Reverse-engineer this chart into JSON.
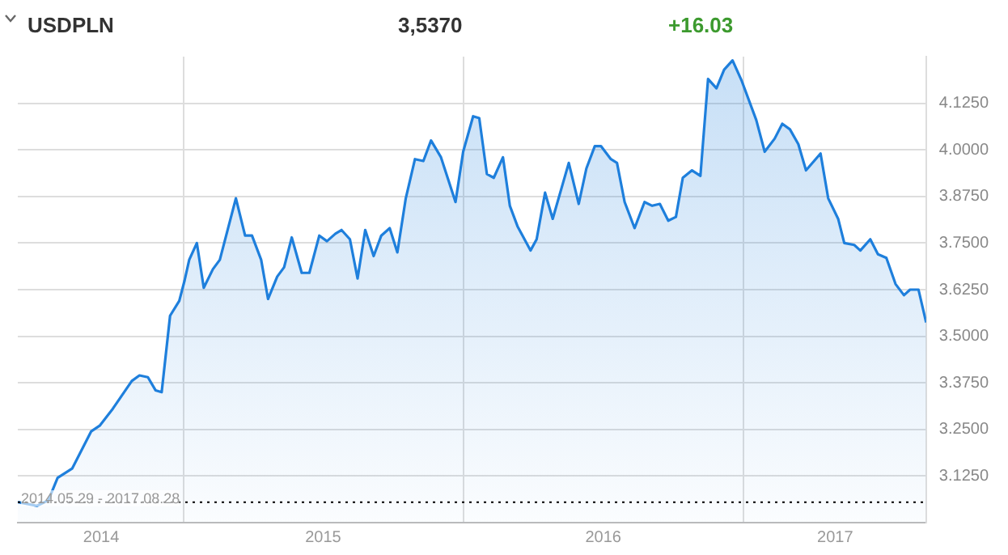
{
  "chart_data": {
    "type": "area",
    "title": "USDPLN",
    "annotations": [
      "3,5370",
      "+16.03",
      "2014.05.29 - 2017.08.28"
    ],
    "xlim": [
      "2014-05-29",
      "2017-08-28"
    ],
    "xticks": [
      {
        "value": "2014-09-15",
        "label": "2014"
      },
      {
        "value": "2015-01-01",
        "label": null
      },
      {
        "value": "2015-07-02",
        "label": "2015"
      },
      {
        "value": "2016-01-01",
        "label": null
      },
      {
        "value": "2016-07-02",
        "label": "2016"
      },
      {
        "value": "2017-01-01",
        "label": null
      },
      {
        "value": "2017-05-01",
        "label": "2017"
      }
    ],
    "ylim": [
      3.0,
      4.25
    ],
    "yticks": [
      {
        "value": 3.125,
        "label": "3.1250"
      },
      {
        "value": 3.25,
        "label": "3.2500"
      },
      {
        "value": 3.375,
        "label": "3.3750"
      },
      {
        "value": 3.5,
        "label": "3.5000"
      },
      {
        "value": 3.625,
        "label": "3.6250"
      },
      {
        "value": 3.75,
        "label": "3.7500"
      },
      {
        "value": 3.875,
        "label": "3.8750"
      },
      {
        "value": 4.0,
        "label": "4.0000"
      },
      {
        "value": 4.125,
        "label": "4.1250"
      }
    ],
    "grid": true,
    "legend": false,
    "marker": "none",
    "line_style": "solid",
    "ref_lines": [
      {
        "axis": "y",
        "value": 3.055,
        "color": "#000000",
        "line_style": "dotted"
      }
    ],
    "x": [
      "2014-05-29",
      "2014-06-23",
      "2014-07-08",
      "2014-07-20",
      "2014-08-08",
      "2014-09-02",
      "2014-09-13",
      "2014-09-30",
      "2014-10-25",
      "2014-11-04",
      "2014-11-15",
      "2014-11-25",
      "2014-12-03",
      "2014-12-14",
      "2014-12-26",
      "2015-01-02",
      "2015-01-08",
      "2015-01-18",
      "2015-01-27",
      "2015-02-08",
      "2015-02-17",
      "2015-03-10",
      "2015-03-22",
      "2015-03-31",
      "2015-04-12",
      "2015-04-21",
      "2015-05-03",
      "2015-05-12",
      "2015-05-22",
      "2015-06-04",
      "2015-06-14",
      "2015-06-27",
      "2015-07-07",
      "2015-07-18",
      "2015-07-26",
      "2015-08-06",
      "2015-08-16",
      "2015-08-26",
      "2015-09-06",
      "2015-09-16",
      "2015-09-27",
      "2015-10-07",
      "2015-10-18",
      "2015-10-30",
      "2015-11-10",
      "2015-11-20",
      "2015-12-03",
      "2015-12-22",
      "2016-01-01",
      "2016-01-14",
      "2016-01-22",
      "2016-02-01",
      "2016-02-10",
      "2016-02-22",
      "2016-03-02",
      "2016-03-12",
      "2016-03-29",
      "2016-04-06",
      "2016-04-17",
      "2016-04-27",
      "2016-05-18",
      "2016-05-31",
      "2016-06-10",
      "2016-06-21",
      "2016-06-29",
      "2016-07-12",
      "2016-07-20",
      "2016-07-30",
      "2016-08-12",
      "2016-08-25",
      "2016-09-04",
      "2016-09-14",
      "2016-09-25",
      "2016-10-05",
      "2016-10-14",
      "2016-10-26",
      "2016-11-06",
      "2016-11-16",
      "2016-11-27",
      "2016-12-07",
      "2016-12-18",
      "2016-12-30",
      "2017-01-18",
      "2017-01-29",
      "2017-02-11",
      "2017-02-21",
      "2017-03-03",
      "2017-03-14",
      "2017-03-24",
      "2017-04-12",
      "2017-04-22",
      "2017-05-05",
      "2017-05-13",
      "2017-05-26",
      "2017-06-03",
      "2017-06-16",
      "2017-06-26",
      "2017-07-07",
      "2017-07-19",
      "2017-07-30",
      "2017-08-07",
      "2017-08-18",
      "2017-08-28"
    ],
    "series": [
      {
        "color": "#1e7fdc",
        "values": [
          3.055,
          3.045,
          3.06,
          3.12,
          3.145,
          3.245,
          3.26,
          3.305,
          3.38,
          3.395,
          3.39,
          3.355,
          3.35,
          3.555,
          3.595,
          3.65,
          3.705,
          3.75,
          3.63,
          3.68,
          3.705,
          3.87,
          3.77,
          3.77,
          3.705,
          3.6,
          3.66,
          3.685,
          3.765,
          3.67,
          3.67,
          3.77,
          3.755,
          3.775,
          3.785,
          3.76,
          3.655,
          3.785,
          3.715,
          3.77,
          3.79,
          3.725,
          3.87,
          3.975,
          3.97,
          4.025,
          3.98,
          3.86,
          3.995,
          4.09,
          4.085,
          3.935,
          3.925,
          3.98,
          3.85,
          3.795,
          3.73,
          3.76,
          3.885,
          3.815,
          3.965,
          3.855,
          3.95,
          4.01,
          4.01,
          3.975,
          3.965,
          3.86,
          3.79,
          3.86,
          3.85,
          3.855,
          3.81,
          3.82,
          3.925,
          3.945,
          3.93,
          4.19,
          4.165,
          4.215,
          4.24,
          4.185,
          4.08,
          3.995,
          4.03,
          4.07,
          4.055,
          4.015,
          3.945,
          3.99,
          3.87,
          3.815,
          3.75,
          3.745,
          3.73,
          3.76,
          3.72,
          3.71,
          3.64,
          3.61,
          3.625,
          3.625,
          3.537
        ]
      }
    ]
  }
}
